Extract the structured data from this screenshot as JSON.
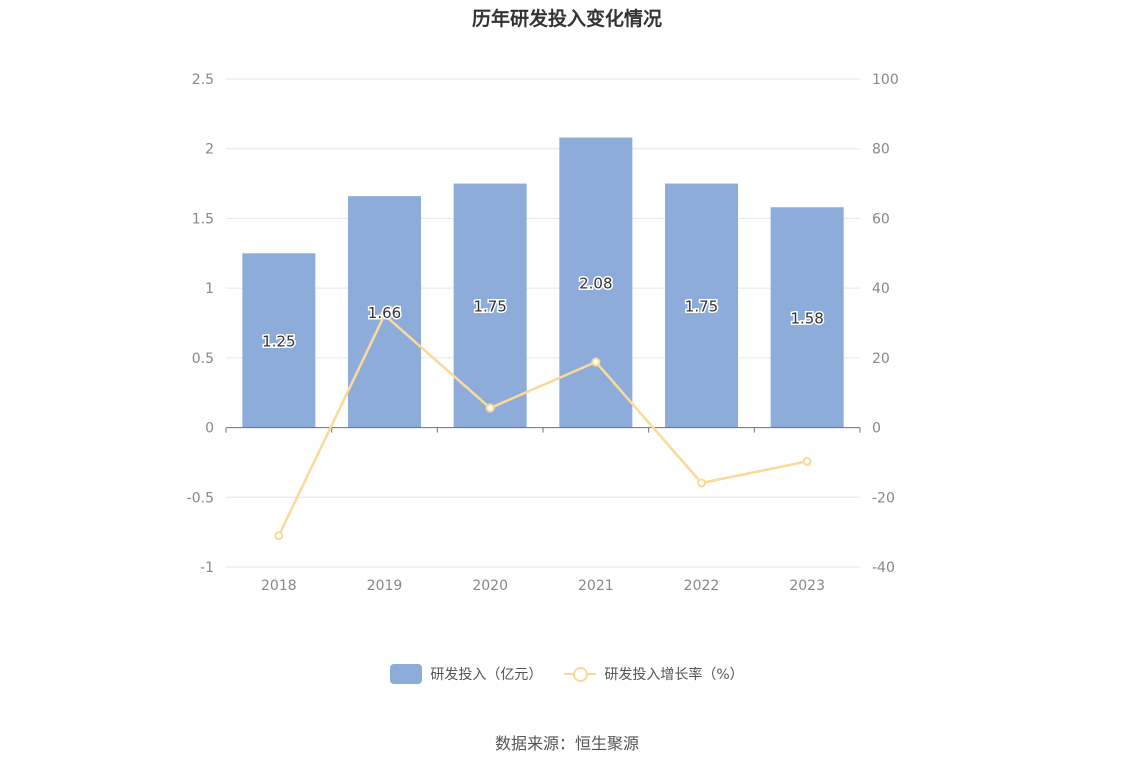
{
  "source_text": "数据来源：恒生聚源",
  "chart_data": {
    "type": "bar",
    "title": "历年研发投入变化情况",
    "categories": [
      "2018",
      "2019",
      "2020",
      "2021",
      "2022",
      "2023"
    ],
    "series": [
      {
        "name": "研发投入（亿元）",
        "type": "bar",
        "axis": "left",
        "values": [
          1.25,
          1.66,
          1.75,
          2.08,
          1.75,
          1.58
        ],
        "color": "#8dacd9"
      },
      {
        "name": "研发投入增长率（%）",
        "type": "line",
        "axis": "right",
        "values": [
          -31.0,
          32.3,
          5.6,
          18.8,
          -15.9,
          -9.7
        ],
        "color": "#fbd999"
      }
    ],
    "y_left": {
      "min": -1,
      "max": 2.5,
      "ticks": [
        "2.5",
        "2",
        "1.5",
        "1",
        "0.5",
        "0",
        "-0.5",
        "-1"
      ]
    },
    "y_right": {
      "min": -40,
      "max": 100,
      "ticks": [
        "100",
        "80",
        "60",
        "40",
        "20",
        "0",
        "-20",
        "-40"
      ]
    },
    "grid": true,
    "legend_position": "bottom"
  }
}
